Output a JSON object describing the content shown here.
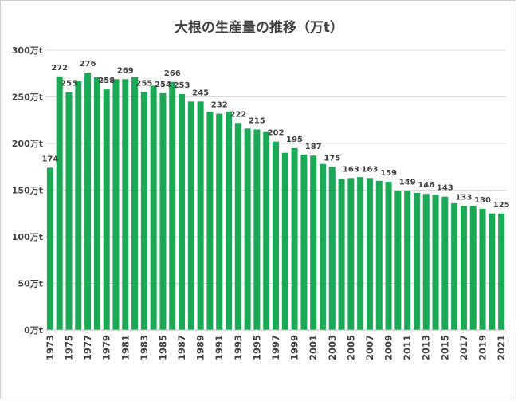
{
  "chart_data": {
    "type": "bar",
    "title": "大根の生産量の推移（万t）",
    "color": "#1aaa55",
    "ylim": [
      0,
      300
    ],
    "yticks": [
      "0万t",
      "50万t",
      "100万t",
      "150万t",
      "200万t",
      "250万t",
      "300万t"
    ],
    "grid": true,
    "categories": [
      "1973",
      "1974",
      "1975",
      "1976",
      "1977",
      "1978",
      "1979",
      "1980",
      "1981",
      "1982",
      "1983",
      "1984",
      "1985",
      "1986",
      "1987",
      "1988",
      "1989",
      "1990",
      "1991",
      "1992",
      "1993",
      "1994",
      "1995",
      "1996",
      "1997",
      "1998",
      "1999",
      "2000",
      "2001",
      "2002",
      "2003",
      "2004",
      "2005",
      "2006",
      "2007",
      "2008",
      "2009",
      "2010",
      "2011",
      "2012",
      "2013",
      "2014",
      "2015",
      "2016",
      "2017",
      "2018",
      "2019",
      "2020",
      "2021"
    ],
    "xtick_labels": [
      "1973",
      "1975",
      "1977",
      "1979",
      "1981",
      "1983",
      "1985",
      "1987",
      "1989",
      "1991",
      "1993",
      "1995",
      "1997",
      "1999",
      "2001",
      "2003",
      "2005",
      "2007",
      "2009",
      "2011",
      "2013",
      "2015",
      "2017",
      "2019",
      "2021"
    ],
    "values": [
      174,
      272,
      255,
      267,
      276,
      271,
      258,
      269,
      269,
      271,
      255,
      262,
      254,
      266,
      253,
      245,
      245,
      234,
      232,
      234,
      222,
      216,
      215,
      213,
      202,
      190,
      195,
      188,
      187,
      178,
      175,
      162,
      163,
      164,
      163,
      160,
      159,
      149,
      149,
      147,
      146,
      145,
      143,
      136,
      133,
      133,
      130,
      125,
      125
    ],
    "data_labels": [
      {
        "year": "1973",
        "text": "174"
      },
      {
        "year": "1974",
        "text": "272"
      },
      {
        "year": "1975",
        "text": "255"
      },
      {
        "year": "1977",
        "text": "276"
      },
      {
        "year": "1979",
        "text": "258"
      },
      {
        "year": "1981",
        "text": "269"
      },
      {
        "year": "1983",
        "text": "255"
      },
      {
        "year": "1985",
        "text": "254"
      },
      {
        "year": "1986",
        "text": "266"
      },
      {
        "year": "1987",
        "text": "253"
      },
      {
        "year": "1989",
        "text": "245"
      },
      {
        "year": "1991",
        "text": "232"
      },
      {
        "year": "1993",
        "text": "222"
      },
      {
        "year": "1995",
        "text": "215"
      },
      {
        "year": "1997",
        "text": "202"
      },
      {
        "year": "1999",
        "text": "195"
      },
      {
        "year": "2001",
        "text": "187"
      },
      {
        "year": "2003",
        "text": "175"
      },
      {
        "year": "2005",
        "text": "163"
      },
      {
        "year": "2007",
        "text": "163"
      },
      {
        "year": "2009",
        "text": "159"
      },
      {
        "year": "2011",
        "text": "149"
      },
      {
        "year": "2013",
        "text": "146"
      },
      {
        "year": "2015",
        "text": "143"
      },
      {
        "year": "2017",
        "text": "133"
      },
      {
        "year": "2019",
        "text": "130"
      },
      {
        "year": "2021",
        "text": "125"
      }
    ]
  }
}
